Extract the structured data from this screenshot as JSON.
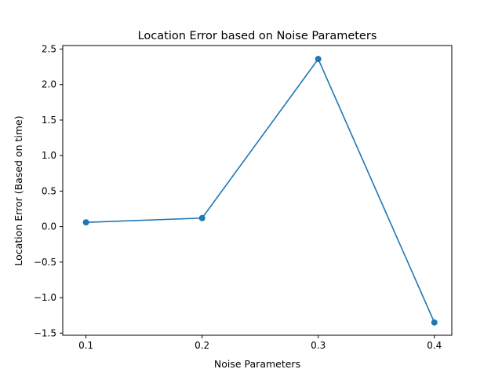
{
  "chart_data": {
    "type": "line",
    "title": "Location Error based on Noise Parameters",
    "xlabel": "Noise Parameters",
    "ylabel": "Location Error (Based on time)",
    "x": [
      0.1,
      0.2,
      0.3,
      0.4
    ],
    "series": [
      {
        "values": [
          0.06,
          0.12,
          2.36,
          -1.35
        ],
        "color": "#1f77b4",
        "marker": "circle"
      }
    ],
    "xticks": [
      "0.1",
      "0.2",
      "0.3",
      "0.4"
    ],
    "yticks": [
      "−1.5",
      "−1.0",
      "−0.5",
      "0.0",
      "0.5",
      "1.0",
      "1.5",
      "2.0",
      "2.5"
    ],
    "ytick_values": [
      -1.5,
      -1.0,
      -0.5,
      0.0,
      0.5,
      1.0,
      1.5,
      2.0,
      2.5
    ],
    "xlim": [
      0.08,
      0.415
    ],
    "ylim": [
      -1.53,
      2.55
    ],
    "grid": false,
    "legend": false
  }
}
